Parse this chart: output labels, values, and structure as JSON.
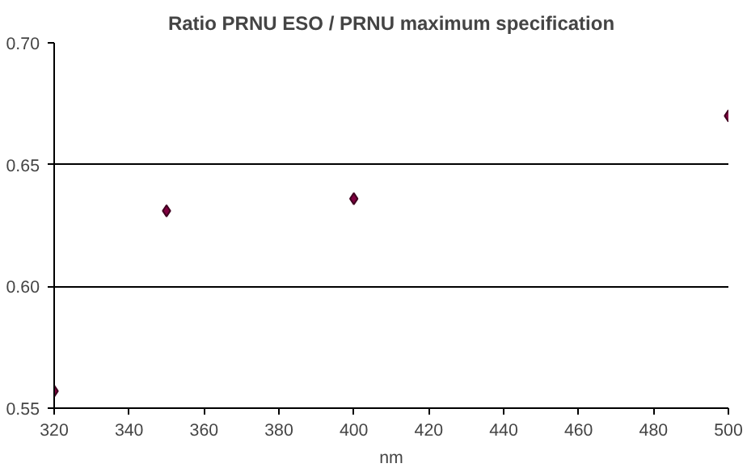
{
  "chart_data": {
    "type": "scatter",
    "title": "Ratio PRNU ESO / PRNU maximum specification",
    "xlabel": "nm",
    "x": [
      320,
      350,
      400,
      500
    ],
    "series": [
      {
        "color": "#800040",
        "values": [
          0.557,
          0.631,
          0.636,
          0.67
        ]
      }
    ],
    "xlim": [
      320,
      500
    ],
    "xticks": [
      320,
      340,
      360,
      380,
      400,
      420,
      440,
      460,
      480,
      500
    ],
    "ylim": [
      0.55,
      0.7
    ],
    "yticks": [
      {
        "value": 0.55,
        "label": "0.55"
      },
      {
        "value": 0.6,
        "label": "0.60"
      },
      {
        "value": 0.65,
        "label": "0.65"
      },
      {
        "value": 0.7,
        "label": "0.70"
      }
    ],
    "grid": "y",
    "marker": "diamond"
  }
}
